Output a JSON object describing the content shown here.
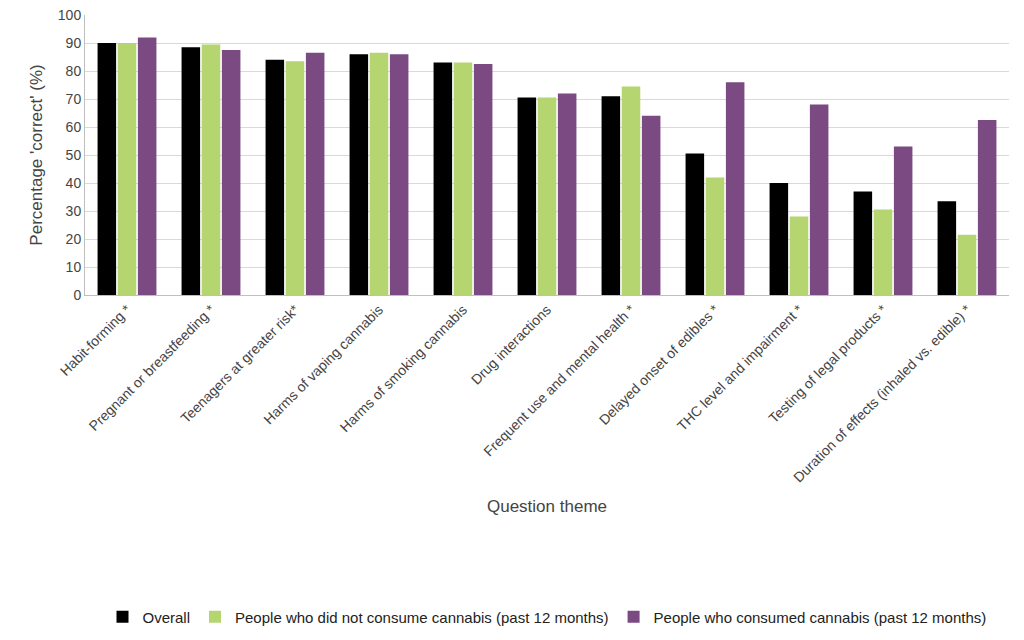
{
  "chart_data": {
    "type": "bar",
    "xlabel": "Question theme",
    "ylabel": "Percentage 'correct' (%)",
    "categories": [
      "Habit-forming *",
      "Pregnant or breastfeeding *",
      "Teenagers at greater risk*",
      "Harms of vaping cannabis",
      "Harms of smoking cannabis",
      "Drug interactions",
      "Frequent use and mental health *",
      "Delayed onset of edibles *",
      "THC level and impairment *",
      "Testing of legal products *",
      "Duration of effects (inhaled vs. edible) *"
    ],
    "series": [
      {
        "name": "Overall",
        "color": "#000000",
        "values": [
          90,
          88.5,
          84,
          86,
          83,
          70.5,
          71,
          50.5,
          40,
          37,
          33.5
        ]
      },
      {
        "name": "People who did not consume cannabis (past 12 months)",
        "color": "#b4d56f",
        "values": [
          90,
          89.5,
          83.5,
          86.5,
          83,
          70.5,
          74.5,
          42,
          28,
          30.5,
          21.5
        ]
      },
      {
        "name": "People who consumed cannabis (past 12 months)",
        "color": "#7b4a82",
        "values": [
          92,
          87.5,
          86.5,
          86,
          82.5,
          72,
          64,
          76,
          68,
          53,
          62.5
        ]
      }
    ],
    "ylim": [
      0,
      100
    ],
    "yticks": [
      0,
      10,
      20,
      30,
      40,
      50,
      60,
      70,
      80,
      90,
      100
    ],
    "grid": true,
    "legend": "bottom"
  }
}
